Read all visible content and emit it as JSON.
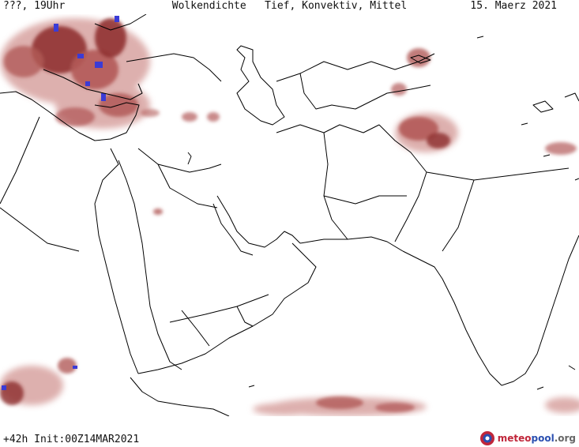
{
  "header": {
    "left": "???, 19Uhr",
    "center": "Wolkendichte   Tief, Konvektiv, Mittel",
    "right": "15. Maerz 2021"
  },
  "footer": {
    "forecast": "+42h Init:00Z14MAR2021"
  },
  "logo": {
    "part1": "meteo",
    "part2": "pool",
    "part3": ".org"
  },
  "colors": {
    "cloud_dark": "#8c2a2a",
    "cloud_mid": "#b25a58",
    "cloud_light": "#d8a3a0",
    "cloud_max": "#3b3bd6",
    "coastline": "#000000"
  }
}
